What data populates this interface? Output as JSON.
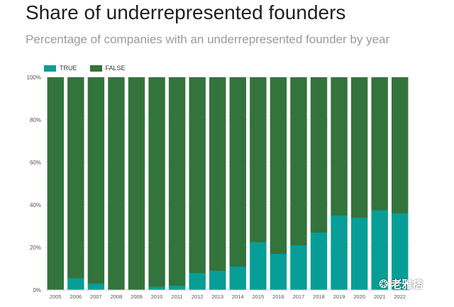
{
  "title": "Share of underrepresented founders",
  "subtitle": "Percentage of companies with an underrepresented founder by year",
  "legend": {
    "true_label": "TRUE",
    "false_label": "FALSE",
    "true_color": "#069e97",
    "false_color": "#33733c"
  },
  "watermark": {
    "text": "老雅痞",
    "icon": "wechat-icon"
  },
  "chart_data": {
    "type": "bar",
    "stacked": true,
    "title": "Share of underrepresented founders",
    "subtitle": "Percentage of companies with an underrepresented founder by year",
    "xlabel": "",
    "ylabel": "",
    "ylim": [
      0,
      100
    ],
    "yticks": [
      "0%",
      "20%",
      "40%",
      "60%",
      "80%",
      "100%"
    ],
    "grid": true,
    "legend_position": "top-left",
    "categories": [
      "2005",
      "2006",
      "2007",
      "2008",
      "2009",
      "2010",
      "2011",
      "2012",
      "2013",
      "2014",
      "2015",
      "2016",
      "2017",
      "2018",
      "2019",
      "2020",
      "2021",
      "2022"
    ],
    "series": [
      {
        "name": "TRUE",
        "color": "#069e97",
        "values": [
          0,
          5.5,
          3,
          0,
          0,
          1.5,
          2,
          8,
          9,
          11,
          22.5,
          17,
          21,
          27,
          35,
          34,
          37.5,
          36
        ]
      },
      {
        "name": "FALSE",
        "color": "#33733c",
        "values": [
          100,
          94.5,
          97,
          100,
          100,
          98.5,
          98,
          92,
          91,
          89,
          77.5,
          83,
          79,
          73,
          65,
          66,
          62.5,
          64
        ]
      }
    ]
  }
}
